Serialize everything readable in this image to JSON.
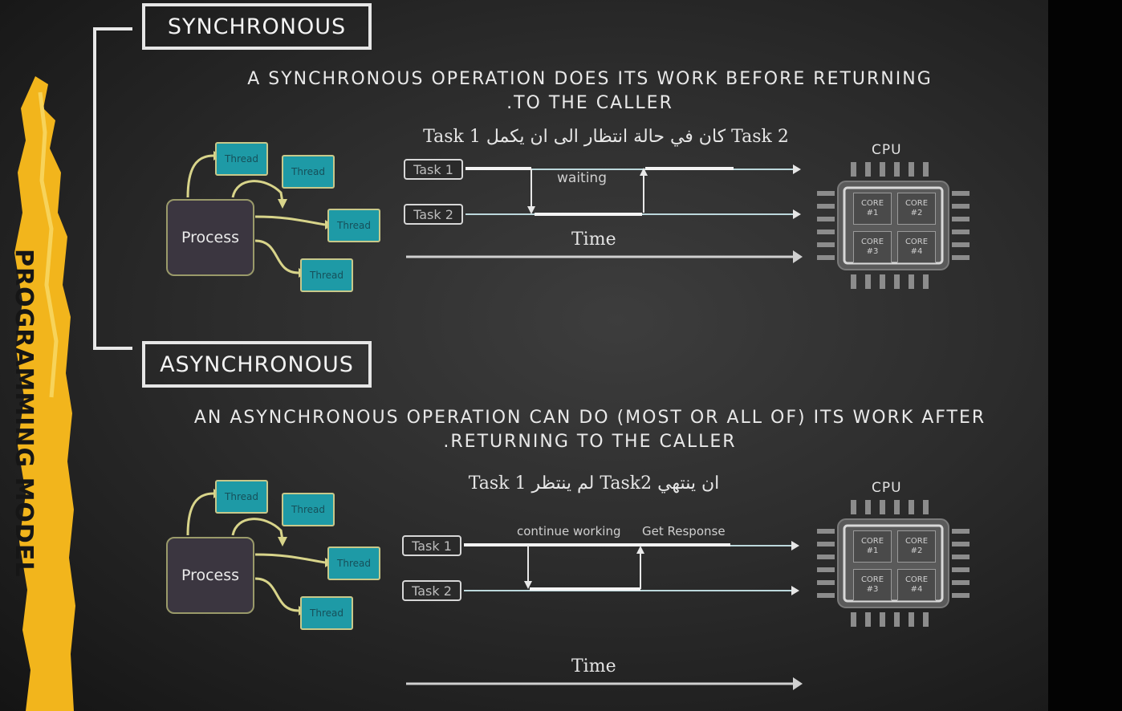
{
  "side_title": "PROGRAMMING MODEL",
  "sync": {
    "heading": "SYNCHRONOUS",
    "description_line1": "A SYNCHRONOUS OPERATION DOES ITS WORK BEFORE RETURNING",
    "description_line2": ".TO THE CALLER",
    "arabic_note": "Task 1 كان في حالة انتظار الى ان يكمل Task 2",
    "process_label": "Process",
    "threads": [
      "Thread",
      "Thread",
      "Thread",
      "Thread"
    ],
    "task1_label": "Task 1",
    "task2_label": "Task 2",
    "waiting_label": "waiting",
    "time_label": "Time",
    "cpu_label": "CPU",
    "cores": [
      "CORE #1",
      "CORE #2",
      "CORE #3",
      "CORE #4"
    ]
  },
  "async": {
    "heading": "ASYNCHRONOUS",
    "description_line1": "AN ASYNCHRONOUS OPERATION CAN DO (MOST OR ALL OF) ITS WORK AFTER",
    "description_line2": ".RETURNING TO THE CALLER",
    "arabic_note": "Task 1 لم ينتظر Task2 ان ينتهي",
    "process_label": "Process",
    "threads": [
      "Thread",
      "Thread",
      "Thread",
      "Thread"
    ],
    "task1_label": "Task 1",
    "task2_label": "Task 2",
    "continue_label": "continue working",
    "response_label": "Get Response",
    "time_label": "Time",
    "cpu_label": "CPU",
    "cores": [
      "CORE #1",
      "CORE #2",
      "CORE #3",
      "CORE #4"
    ]
  },
  "colors": {
    "board": "#2c2c2c",
    "chalk": "#ececec",
    "thread_fill": "#1e9aa6",
    "process_fill": "#3b3640",
    "stripe": "#f2b51c",
    "timeline_line": "#bcd8dc"
  }
}
